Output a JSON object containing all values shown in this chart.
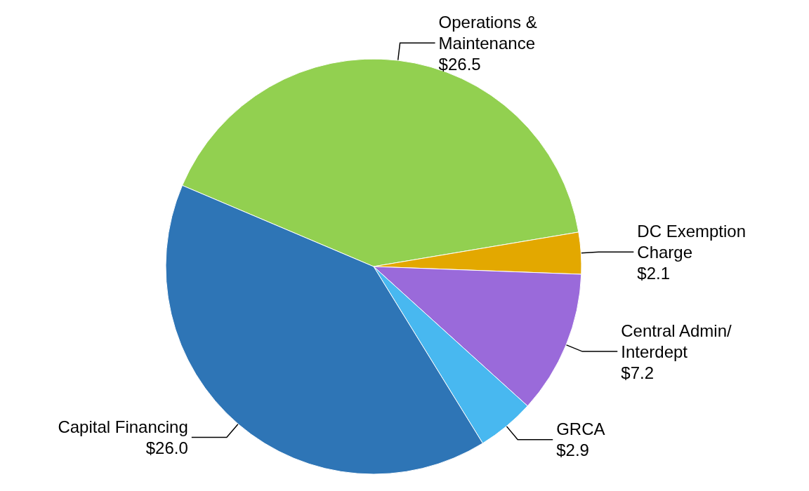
{
  "chart_data": {
    "type": "pie",
    "categories": [
      "Operations & Maintenance",
      "DC Exemption Charge",
      "Central Admin/Interdept",
      "GRCA",
      "Capital Financing"
    ],
    "values": [
      26.5,
      2.1,
      7.2,
      2.9,
      26.0
    ],
    "value_labels": [
      "$26.5",
      "$2.1",
      "$7.2",
      "$2.9",
      "$26.0"
    ],
    "colors": [
      "#92d050",
      "#e3a800",
      "#9a6ada",
      "#48b8f0",
      "#2e75b6"
    ],
    "legend": false
  }
}
